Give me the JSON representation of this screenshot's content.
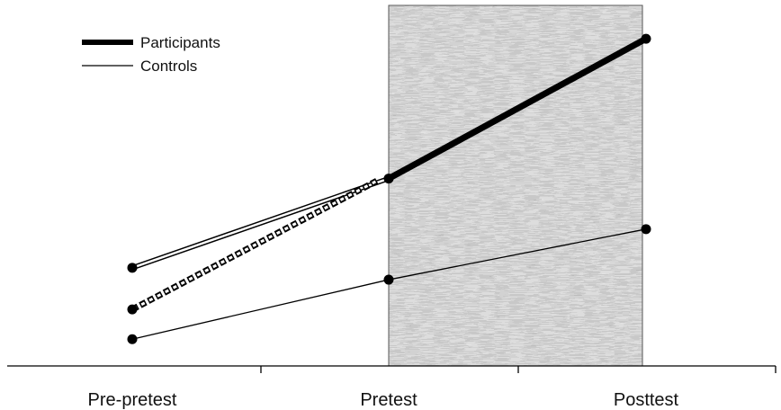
{
  "chart_data": {
    "type": "line",
    "categories": [
      "Pre-pretest",
      "Pretest",
      "Posttest"
    ],
    "series": [
      {
        "name": "Participants",
        "values": [
          null,
          3.15,
          5.5
        ]
      },
      {
        "name": "Controls",
        "values": [
          0.45,
          1.45,
          2.3
        ]
      }
    ],
    "unlabeled_paths": [
      {
        "style": "double-line",
        "values": [
          1.65,
          3.15
        ]
      },
      {
        "style": "hatched-dashed",
        "values": [
          0.95,
          3.15
        ]
      }
    ],
    "shaded_region": {
      "from": "Pretest",
      "to": "Posttest"
    },
    "ylim": [
      0,
      6
    ],
    "y_axis_shown": false,
    "grid": false,
    "legend": {
      "position": "top-left",
      "items": [
        {
          "label": "Participants",
          "style": "thick"
        },
        {
          "label": "Controls",
          "style": "thin"
        }
      ]
    },
    "colors": {
      "line": "#000000",
      "shade": "#a9a9a9",
      "shade_light": "#dcdcdc"
    }
  }
}
